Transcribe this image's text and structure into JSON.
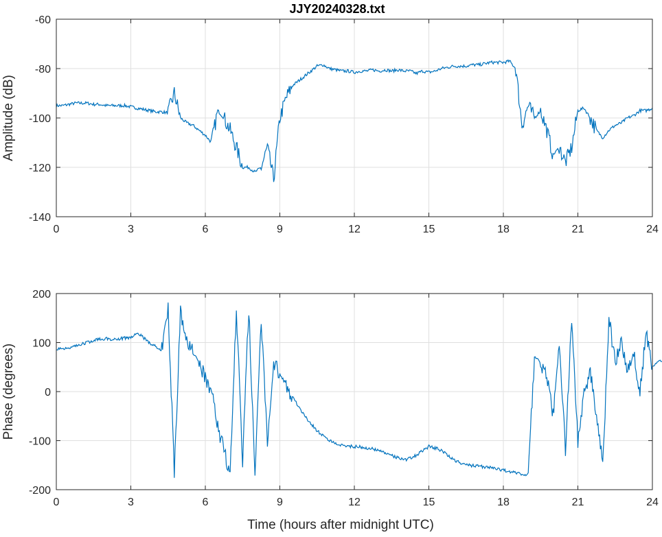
{
  "chart_data": [
    {
      "type": "line",
      "title": "JJY20240328.txt",
      "xlabel": "",
      "ylabel": "Amplitude (dB)",
      "xlim": [
        0,
        24
      ],
      "ylim": [
        -140,
        -60
      ],
      "xticks": [
        0,
        3,
        6,
        9,
        12,
        15,
        18,
        21,
        24
      ],
      "yticks": [
        -140,
        -120,
        -100,
        -80,
        -60
      ],
      "grid": true,
      "color": "#0072BD",
      "x_step": 0.25,
      "values": [
        -95,
        -95,
        -94.5,
        -94,
        -94,
        -94,
        -94.5,
        -94.5,
        -95,
        -95,
        -95,
        -95,
        -95.5,
        -96,
        -96.5,
        -97,
        -97.5,
        -97.5,
        -98,
        -90,
        -100,
        -102,
        -103,
        -105,
        -107,
        -110,
        -97,
        -100,
        -105,
        -112,
        -120,
        -120,
        -122,
        -120,
        -112,
        -125,
        -100,
        -92,
        -87,
        -85,
        -83,
        -81,
        -79,
        -78.5,
        -80,
        -80.5,
        -81,
        -81,
        -81.5,
        -81,
        -81,
        -80.5,
        -81,
        -80.5,
        -81,
        -80.5,
        -81,
        -81,
        -82,
        -81,
        -81.5,
        -81,
        -80,
        -79.5,
        -79,
        -79,
        -79,
        -78.5,
        -78.5,
        -78,
        -77.5,
        -77.5,
        -77.5,
        -77,
        -80,
        -103,
        -95,
        -100,
        -97,
        -105,
        -115,
        -112,
        -118,
        -112,
        -97,
        -96,
        -100,
        -105,
        -108,
        -105,
        -103,
        -102,
        -100,
        -99,
        -97,
        -97,
        -96
      ]
    },
    {
      "type": "line",
      "title": "",
      "xlabel": "Time (hours after midnight UTC)",
      "ylabel": "Phase (degrees)",
      "xlim": [
        0,
        24
      ],
      "ylim": [
        -200,
        200
      ],
      "xticks": [
        0,
        3,
        6,
        9,
        12,
        15,
        18,
        21,
        24
      ],
      "yticks": [
        -200,
        -100,
        0,
        100,
        200
      ],
      "grid": true,
      "color": "#0072BD",
      "x_step": 0.25,
      "values": [
        88,
        88,
        90,
        93,
        97,
        100,
        105,
        107,
        108,
        107,
        108,
        109,
        110,
        120,
        110,
        100,
        92,
        85,
        170,
        -160,
        160,
        110,
        80,
        60,
        30,
        0,
        -70,
        -120,
        -170,
        170,
        -140,
        170,
        -170,
        150,
        -100,
        60,
        35,
        15,
        -10,
        -30,
        -50,
        -65,
        -80,
        -90,
        -100,
        -105,
        -110,
        -111,
        -112,
        -113,
        -115,
        -117,
        -120,
        -125,
        -130,
        -135,
        -140,
        -135,
        -130,
        -120,
        -112,
        -115,
        -120,
        -130,
        -140,
        -145,
        -150,
        -151,
        -152,
        -154,
        -155,
        -158,
        -160,
        -163,
        -165,
        -168,
        -170,
        70,
        60,
        30,
        -50,
        100,
        -120,
        150,
        -100,
        0,
        40,
        -50,
        -150,
        150,
        60,
        100,
        40,
        80,
        0,
        120,
        50,
        60,
        65
      ]
    }
  ]
}
